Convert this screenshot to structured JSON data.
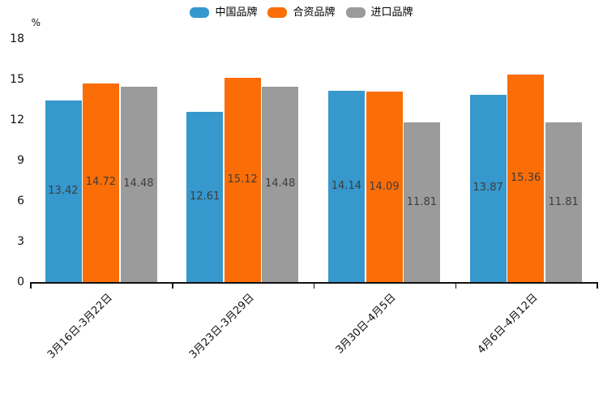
{
  "chart_data": {
    "type": "bar",
    "title": "",
    "unit_label": "%",
    "categories": [
      "3月16日-3月22日",
      "3月23日-3月29日",
      "3月30日-4月5日",
      "4月6日-4月12日"
    ],
    "series": [
      {
        "name": "中国品牌",
        "color": "#3698CD",
        "values": [
          13.42,
          12.61,
          14.14,
          13.87
        ]
      },
      {
        "name": "合资品牌",
        "color": "#FB6D06",
        "values": [
          14.72,
          15.12,
          14.09,
          15.36
        ]
      },
      {
        "name": "进口品牌",
        "color": "#9B9B9B",
        "values": [
          14.48,
          14.48,
          11.81,
          11.81
        ]
      }
    ],
    "y_ticks": [
      0,
      3,
      6,
      9,
      12,
      15,
      18
    ],
    "ylim": [
      0,
      18
    ],
    "grid": false,
    "legend_position": "top-center",
    "value_labels": "inside-center",
    "axis_color": "#111111",
    "value_label_color": "#3d3d3d"
  }
}
